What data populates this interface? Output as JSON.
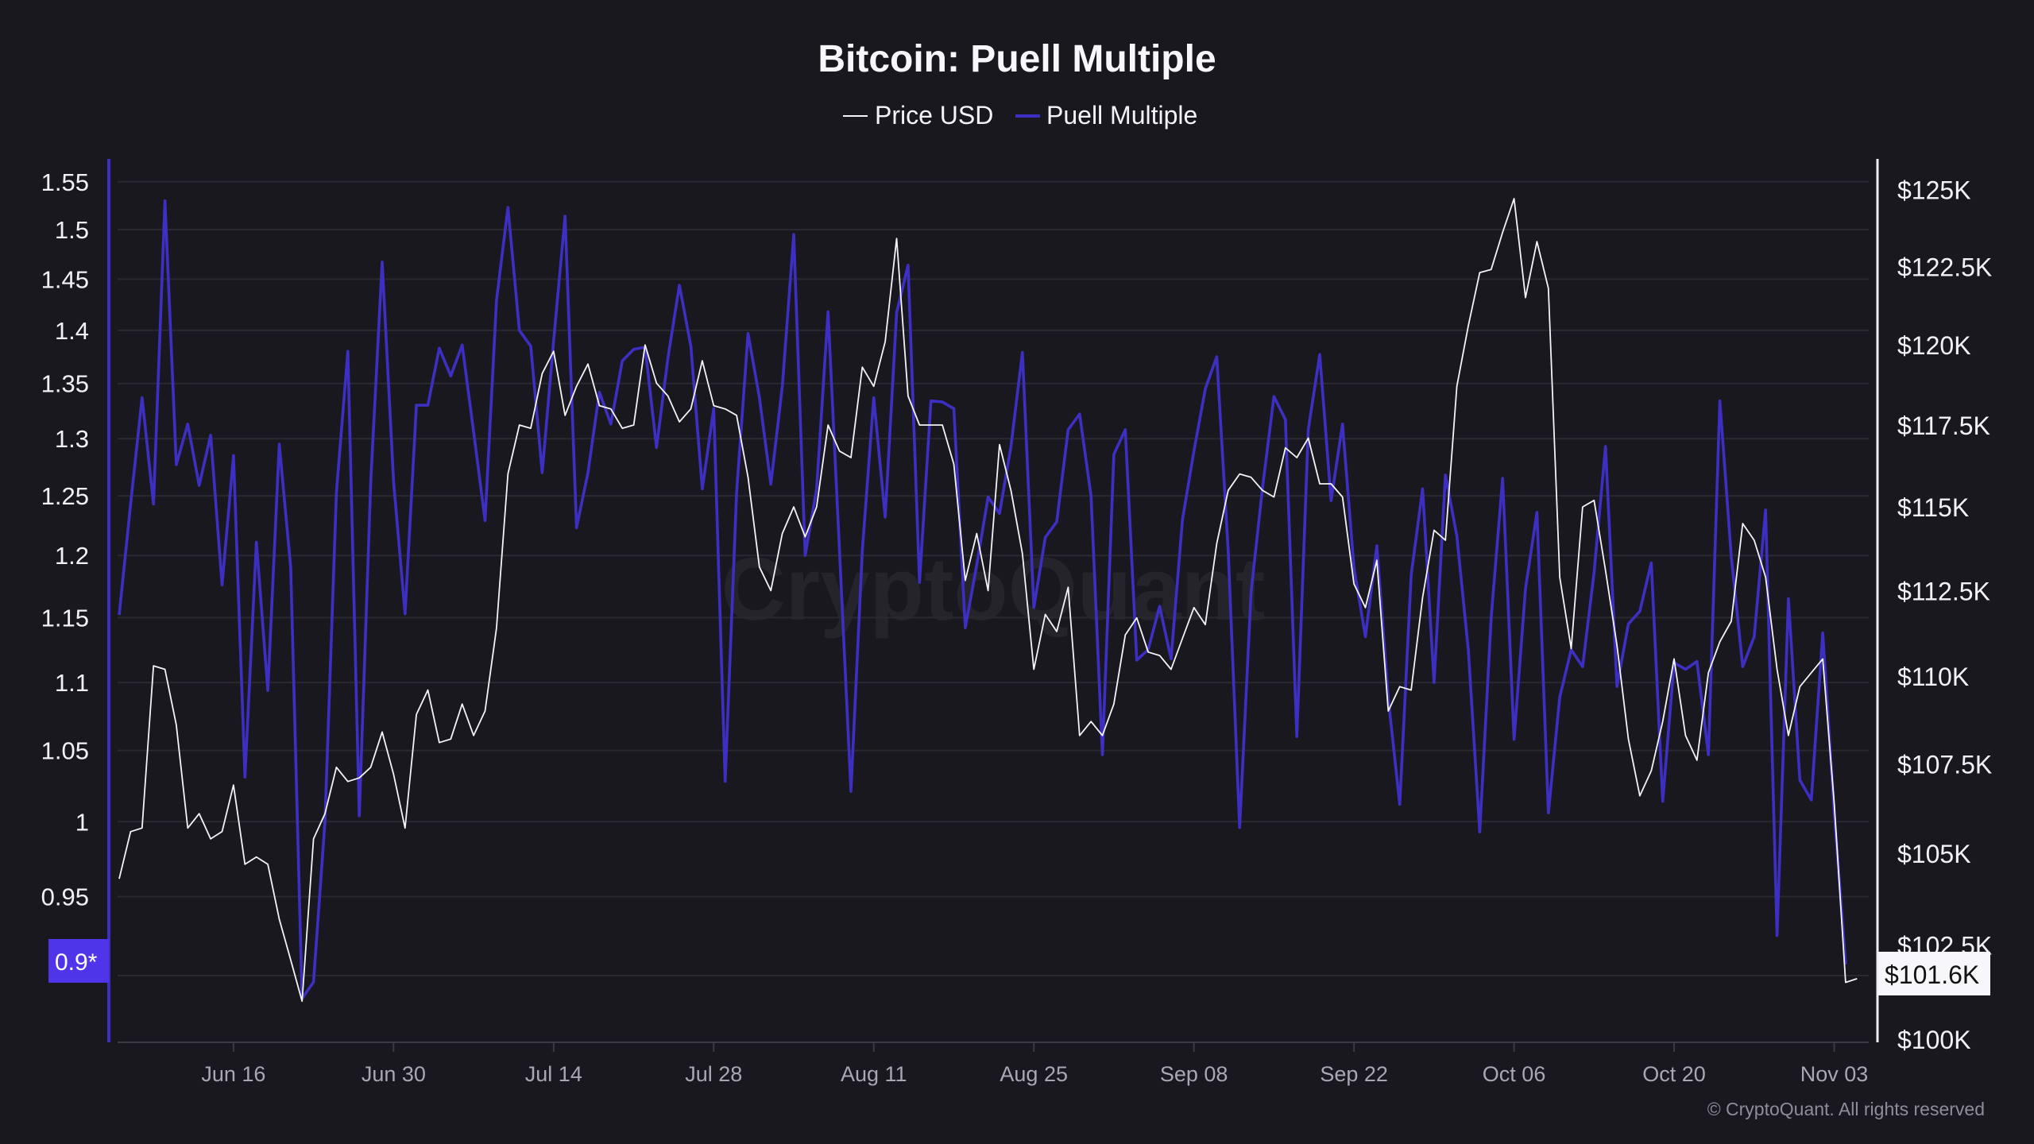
{
  "chart_data": {
    "type": "line",
    "title": "Bitcoin: Puell Multiple",
    "legend": [
      {
        "name": "Price USD",
        "color": "#f4f4f8"
      },
      {
        "name": "Puell Multiple",
        "color": "#3d2fc2"
      }
    ],
    "legend_placement": "top-center",
    "watermark": "CryptoQuant",
    "copyright": "© CryptoQuant. All rights reserved",
    "x_dates": [
      "Jun 06",
      "Jun 07",
      "Jun 08",
      "Jun 09",
      "Jun 10",
      "Jun 11",
      "Jun 12",
      "Jun 13",
      "Jun 14",
      "Jun 15",
      "Jun 16",
      "Jun 17",
      "Jun 18",
      "Jun 19",
      "Jun 20",
      "Jun 21",
      "Jun 22",
      "Jun 23",
      "Jun 24",
      "Jun 25",
      "Jun 26",
      "Jun 27",
      "Jun 28",
      "Jun 29",
      "Jun 30",
      "Jul 01",
      "Jul 02",
      "Jul 03",
      "Jul 04",
      "Jul 05",
      "Jul 06",
      "Jul 07",
      "Jul 08",
      "Jul 09",
      "Jul 10",
      "Jul 11",
      "Jul 12",
      "Jul 13",
      "Jul 14",
      "Jul 15",
      "Jul 16",
      "Jul 17",
      "Jul 18",
      "Jul 19",
      "Jul 20",
      "Jul 21",
      "Jul 22",
      "Jul 23",
      "Jul 24",
      "Jul 25",
      "Jul 26",
      "Jul 27",
      "Jul 28",
      "Jul 29",
      "Jul 30",
      "Jul 31",
      "Aug 01",
      "Aug 02",
      "Aug 03",
      "Aug 04",
      "Aug 05",
      "Aug 06",
      "Aug 07",
      "Aug 08",
      "Aug 09",
      "Aug 10",
      "Aug 11",
      "Aug 12",
      "Aug 13",
      "Aug 14",
      "Aug 15",
      "Aug 16",
      "Aug 17",
      "Aug 18",
      "Aug 19",
      "Aug 20",
      "Aug 21",
      "Aug 22",
      "Aug 23",
      "Aug 24",
      "Aug 25",
      "Aug 26",
      "Aug 27",
      "Aug 28",
      "Aug 29",
      "Aug 30",
      "Aug 31",
      "Sep 01",
      "Sep 02",
      "Sep 03",
      "Sep 04",
      "Sep 05",
      "Sep 06",
      "Sep 07",
      "Sep 08",
      "Sep 09",
      "Sep 10",
      "Sep 11",
      "Sep 12",
      "Sep 13",
      "Sep 14",
      "Sep 15",
      "Sep 16",
      "Sep 17",
      "Sep 18",
      "Sep 19",
      "Sep 20",
      "Sep 21",
      "Sep 22",
      "Sep 23",
      "Sep 24",
      "Sep 25",
      "Sep 26",
      "Sep 27",
      "Sep 28",
      "Sep 29",
      "Sep 30",
      "Oct 01",
      "Oct 02",
      "Oct 03",
      "Oct 04",
      "Oct 05",
      "Oct 06",
      "Oct 07",
      "Oct 08",
      "Oct 09",
      "Oct 10",
      "Oct 11",
      "Oct 12",
      "Oct 13",
      "Oct 14",
      "Oct 15",
      "Oct 16",
      "Oct 17",
      "Oct 18",
      "Oct 19",
      "Oct 20",
      "Oct 21",
      "Oct 22",
      "Oct 23",
      "Oct 24",
      "Oct 25",
      "Oct 26",
      "Oct 27",
      "Oct 28",
      "Oct 29",
      "Oct 30",
      "Oct 31",
      "Nov 01",
      "Nov 02",
      "Nov 03",
      "Nov 04",
      "Nov 05"
    ],
    "x_ticks": [
      "Jun 16",
      "Jun 30",
      "Jul 14",
      "Jul 28",
      "Aug 11",
      "Aug 25",
      "Sep 08",
      "Sep 22",
      "Oct 06",
      "Oct 20",
      "Nov 03"
    ],
    "y_left": {
      "scale": "log",
      "range": [
        0.9,
        1.55
      ],
      "ticks": [
        1.55,
        1.5,
        1.45,
        1.4,
        1.35,
        1.3,
        1.25,
        1.2,
        1.15,
        1.1,
        1.05,
        1,
        0.95,
        0.9
      ],
      "tick_labels": [
        "1.55",
        "1.5",
        "1.45",
        "1.4",
        "1.35",
        "1.3",
        "1.25",
        "1.2",
        "1.15",
        "1.1",
        "1.05",
        "1",
        "0.95",
        "0.9"
      ],
      "last_value_label": "0.9*",
      "color": "#3d2fc2",
      "label_bg": "#4f35ea"
    },
    "y_right": {
      "scale": "log",
      "unit": "USD thousands",
      "range": [
        100,
        125
      ],
      "ticks": [
        125,
        122.5,
        120,
        117.5,
        115,
        112.5,
        110,
        107.5,
        105,
        102.5,
        100
      ],
      "tick_labels": [
        "$125K",
        "$122.5K",
        "$120K",
        "$117.5K",
        "$115K",
        "$112.5K",
        "$110K",
        "$107.5K",
        "$105K",
        "$102.5K",
        "$100K"
      ],
      "last_value_label": "$101.6K"
    },
    "grid": true,
    "series": [
      {
        "name": "Puell Multiple",
        "axis": "left",
        "values": [
          1.152,
          1.243,
          1.337,
          1.243,
          1.53,
          1.277,
          1.313,
          1.259,
          1.303,
          1.176,
          1.285,
          1.031,
          1.211,
          1.094,
          1.295,
          1.19,
          0.886,
          0.896,
          1.0,
          1.253,
          1.38,
          1.004,
          1.262,
          1.467,
          1.262,
          1.153,
          1.33,
          1.33,
          1.383,
          1.357,
          1.386,
          1.306,
          1.229,
          1.429,
          1.523,
          1.4,
          1.385,
          1.27,
          1.39,
          1.514,
          1.223,
          1.27,
          1.342,
          1.313,
          1.371,
          1.382,
          1.384,
          1.292,
          1.374,
          1.444,
          1.385,
          1.256,
          1.327,
          1.028,
          1.253,
          1.397,
          1.337,
          1.26,
          1.347,
          1.495,
          1.2,
          1.256,
          1.418,
          1.204,
          1.021,
          1.204,
          1.337,
          1.232,
          1.417,
          1.464,
          1.178,
          1.334,
          1.333,
          1.327,
          1.142,
          1.192,
          1.249,
          1.235,
          1.293,
          1.379,
          1.158,
          1.215,
          1.228,
          1.308,
          1.322,
          1.25,
          1.047,
          1.286,
          1.308,
          1.117,
          1.125,
          1.159,
          1.118,
          1.23,
          1.289,
          1.345,
          1.375,
          1.204,
          0.996,
          1.17,
          1.257,
          1.338,
          1.317,
          1.06,
          1.308,
          1.377,
          1.246,
          1.313,
          1.19,
          1.135,
          1.208,
          1.088,
          1.012,
          1.184,
          1.256,
          1.1,
          1.268,
          1.216,
          1.125,
          0.993,
          1.15,
          1.265,
          1.058,
          1.173,
          1.236,
          1.006,
          1.089,
          1.125,
          1.112,
          1.186,
          1.293,
          1.097,
          1.145,
          1.155,
          1.194,
          1.014,
          1.115,
          1.11,
          1.116,
          1.047,
          1.334,
          1.199,
          1.112,
          1.135,
          1.238,
          0.925,
          1.165,
          1.029,
          1.015,
          1.138,
          1.007,
          0.907,
          null
        ]
      },
      {
        "name": "Price USD",
        "axis": "right",
        "values": [
          104.3,
          105.6,
          105.7,
          110.3,
          110.2,
          108.6,
          105.7,
          106.1,
          105.4,
          105.6,
          106.9,
          104.7,
          104.9,
          104.7,
          103.2,
          102.1,
          101.0,
          105.4,
          106.1,
          107.4,
          107.0,
          107.1,
          107.4,
          108.4,
          107.2,
          105.7,
          108.9,
          109.6,
          108.1,
          108.2,
          109.2,
          108.3,
          109.0,
          111.4,
          116.0,
          117.5,
          117.4,
          119.1,
          119.8,
          117.8,
          118.7,
          119.4,
          118.1,
          118.0,
          117.4,
          117.5,
          120.0,
          118.8,
          118.4,
          117.6,
          118.0,
          119.5,
          118.1,
          118.0,
          117.8,
          115.9,
          113.2,
          112.5,
          114.2,
          115.0,
          114.1,
          115.0,
          117.5,
          116.7,
          116.5,
          119.3,
          118.7,
          120.1,
          123.4,
          118.4,
          117.5,
          117.5,
          117.5,
          116.3,
          112.8,
          114.2,
          112.5,
          116.9,
          115.5,
          113.6,
          110.2,
          111.8,
          111.3,
          112.6,
          108.3,
          108.7,
          108.3,
          109.2,
          111.2,
          111.7,
          110.7,
          110.6,
          110.2,
          111.1,
          112.0,
          111.5,
          113.9,
          115.5,
          116.0,
          115.9,
          115.5,
          115.3,
          116.8,
          116.5,
          117.1,
          115.7,
          115.7,
          115.3,
          112.7,
          112.0,
          113.4,
          109.0,
          109.7,
          109.6,
          112.3,
          114.3,
          114.0,
          118.7,
          120.6,
          122.3,
          122.4,
          123.6,
          124.7,
          121.5,
          123.3,
          121.8,
          112.9,
          110.8,
          115.0,
          115.2,
          113.1,
          110.9,
          108.2,
          106.6,
          107.3,
          108.7,
          110.5,
          108.3,
          107.6,
          110.1,
          111.0,
          111.6,
          114.5,
          114.0,
          112.9,
          110.2,
          108.3,
          109.7,
          110.1,
          110.5,
          106.4,
          101.5,
          101.6
        ]
      }
    ]
  }
}
